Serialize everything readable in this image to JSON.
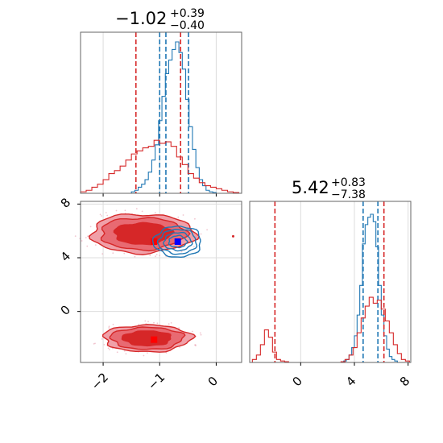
{
  "chart_data": [
    {
      "type": "histogram",
      "panel": "top-left",
      "title": {
        "median": "−1.02",
        "plus": "+0.39",
        "minus": "−0.40"
      },
      "xlim": [
        -2.4,
        0.45
      ],
      "grid": true,
      "series": [
        {
          "color": "#1f77b4",
          "bins_x": [
            -1.5,
            -1.44,
            -1.38,
            -1.32,
            -1.26,
            -1.2,
            -1.14,
            -1.08,
            -1.02,
            -0.96,
            -0.9,
            -0.84,
            -0.78,
            -0.72,
            -0.66,
            -0.6,
            -0.54,
            -0.48,
            -0.42,
            -0.36,
            -0.3,
            -0.24,
            -0.18,
            -0.12,
            -0.06
          ],
          "counts": [
            0.01,
            0.02,
            0.04,
            0.06,
            0.09,
            0.14,
            0.22,
            0.32,
            0.48,
            0.64,
            0.79,
            0.88,
            0.95,
            1.0,
            0.93,
            0.82,
            0.62,
            0.44,
            0.29,
            0.17,
            0.09,
            0.05,
            0.02,
            0.01,
            0.005
          ],
          "quantiles": [
            -1.0,
            -0.89,
            -0.49
          ]
        },
        {
          "color": "#d62728",
          "bins_x": [
            -2.4,
            -2.3,
            -2.2,
            -2.1,
            -2.0,
            -1.9,
            -1.8,
            -1.7,
            -1.6,
            -1.5,
            -1.4,
            -1.3,
            -1.2,
            -1.1,
            -1.0,
            -0.9,
            -0.8,
            -0.7,
            -0.6,
            -0.5,
            -0.4,
            -0.3,
            -0.2,
            -0.1,
            0.0,
            0.1,
            0.2,
            0.3
          ],
          "counts": [
            0.01,
            0.02,
            0.04,
            0.06,
            0.09,
            0.13,
            0.15,
            0.18,
            0.22,
            0.26,
            0.28,
            0.3,
            0.31,
            0.35,
            0.33,
            0.34,
            0.31,
            0.24,
            0.19,
            0.13,
            0.1,
            0.07,
            0.05,
            0.04,
            0.03,
            0.02,
            0.01,
            0.005
          ],
          "quantiles": [
            -1.42,
            -0.63
          ]
        }
      ]
    },
    {
      "type": "contour",
      "panel": "bottom-left",
      "xlim": [
        -2.4,
        0.45
      ],
      "ylim": [
        -3.8,
        8.2
      ],
      "xticks": [
        "−2",
        "−1",
        "0"
      ],
      "yticks": [
        "0",
        "4",
        "8"
      ],
      "grid": true,
      "series": [
        {
          "color": "#d62728",
          "filled": true,
          "blobs": [
            {
              "cx": -1.3,
              "cy": 5.8,
              "rx": 0.92,
              "ry": 1.45
            },
            {
              "cx": -1.22,
              "cy": -2.0,
              "rx": 0.78,
              "ry": 1.0
            }
          ],
          "best_fit": [
            {
              "x": -1.1,
              "y": 5.2
            },
            {
              "x": -1.1,
              "y": -2.1
            }
          ]
        },
        {
          "color": "#1f77b4",
          "filled": false,
          "blobs": [
            {
              "cx": -0.68,
              "cy": 5.2,
              "rx": 0.42,
              "ry": 1.15
            }
          ],
          "best_fit": [
            {
              "x": -0.68,
              "y": 5.2
            }
          ]
        }
      ]
    },
    {
      "type": "histogram",
      "panel": "bottom-right",
      "title": {
        "median": "5.42",
        "plus": "+0.83",
        "minus": "−7.38"
      },
      "xlim": [
        -3.8,
        8.2
      ],
      "xticks": [
        "0",
        "4",
        "8"
      ],
      "grid": true,
      "series": [
        {
          "color": "#1f77b4",
          "bins_x": [
            3.2,
            3.4,
            3.6,
            3.8,
            4.0,
            4.2,
            4.4,
            4.6,
            4.8,
            5.0,
            5.2,
            5.4,
            5.6,
            5.8,
            6.0,
            6.2,
            6.4,
            6.6,
            6.8,
            7.0
          ],
          "counts": [
            0.01,
            0.02,
            0.05,
            0.1,
            0.18,
            0.32,
            0.52,
            0.8,
            0.93,
            0.98,
            1.0,
            0.95,
            0.78,
            0.52,
            0.32,
            0.18,
            0.09,
            0.04,
            0.02,
            0.01
          ],
          "quantiles": [
            4.65,
            5.75
          ]
        },
        {
          "color": "#d62728",
          "bins_x": [
            -3.6,
            -3.3,
            -3.0,
            -2.7,
            -2.4,
            -2.1,
            -1.8,
            -1.5,
            -1.2,
            -0.9,
            -0.6,
            -0.3,
            0.0,
            0.3,
            0.6,
            0.9,
            1.2,
            1.5,
            1.8,
            2.1,
            2.4,
            2.7,
            3.0,
            3.3,
            3.6,
            3.9,
            4.2,
            4.5,
            4.8,
            5.1,
            5.4,
            5.7,
            6.0,
            6.3,
            6.6,
            6.9,
            7.2,
            7.5,
            7.8
          ],
          "counts": [
            0.02,
            0.05,
            0.12,
            0.22,
            0.17,
            0.07,
            0.02,
            0.01,
            0.005,
            0,
            0,
            0,
            0,
            0,
            0,
            0,
            0,
            0,
            0,
            0,
            0,
            0,
            0.005,
            0.02,
            0.05,
            0.1,
            0.2,
            0.3,
            0.38,
            0.44,
            0.4,
            0.42,
            0.36,
            0.28,
            0.2,
            0.12,
            0.06,
            0.02,
            0.01
          ],
          "quantiles": [
            -1.92,
            6.2
          ]
        }
      ]
    }
  ]
}
